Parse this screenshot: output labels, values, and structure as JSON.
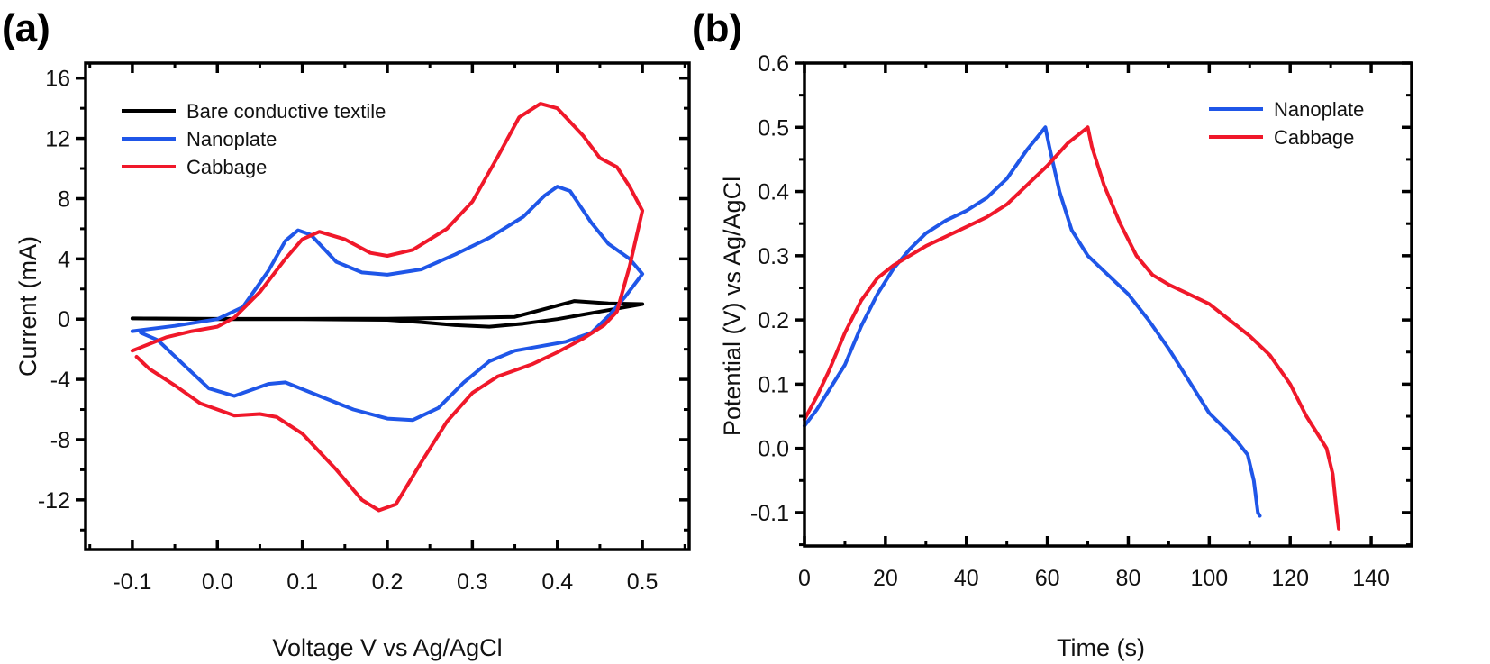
{
  "figure": {
    "panels": [
      "(a)",
      "(b)"
    ]
  },
  "chart_data": [
    {
      "panel_label": "(a)",
      "type": "line",
      "title": "",
      "xlabel": "Voltage V vs Ag/AgCl",
      "ylabel": "Current (mA)",
      "xlim": [
        -0.155,
        0.555
      ],
      "ylim": [
        -15.3,
        17.0
      ],
      "xticks": [
        -0.1,
        0.0,
        0.1,
        0.2,
        0.3,
        0.4,
        0.5
      ],
      "xtick_labels": [
        "-0.1",
        "0.0",
        "0.1",
        "0.2",
        "0.3",
        "0.4",
        "0.5"
      ],
      "yticks": [
        -12,
        -8,
        -4,
        0,
        4,
        8,
        12,
        16
      ],
      "ytick_labels": [
        "-12",
        "-8",
        "-4",
        "0",
        "4",
        "8",
        "12",
        "16"
      ],
      "grid": false,
      "legend_position": "top-left",
      "series": [
        {
          "name": "Bare conductive textile",
          "color": "#000000",
          "points": [
            [
              -0.1,
              0.05
            ],
            [
              0.0,
              0.02
            ],
            [
              0.1,
              0.02
            ],
            [
              0.2,
              0.03
            ],
            [
              0.3,
              0.1
            ],
            [
              0.35,
              0.15
            ],
            [
              0.38,
              0.6
            ],
            [
              0.42,
              1.2
            ],
            [
              0.46,
              1.05
            ],
            [
              0.5,
              1.0
            ],
            [
              0.46,
              0.6
            ],
            [
              0.4,
              0.0
            ],
            [
              0.36,
              -0.3
            ],
            [
              0.32,
              -0.5
            ],
            [
              0.28,
              -0.4
            ],
            [
              0.24,
              -0.2
            ],
            [
              0.2,
              -0.05
            ],
            [
              0.1,
              0.0
            ],
            [
              0.0,
              0.0
            ],
            [
              -0.1,
              0.05
            ]
          ]
        },
        {
          "name": "Nanoplate",
          "color": "#1f56e8",
          "points": [
            [
              -0.1,
              -0.8
            ],
            [
              -0.05,
              -0.45
            ],
            [
              0.0,
              0.0
            ],
            [
              0.03,
              0.8
            ],
            [
              0.06,
              3.2
            ],
            [
              0.08,
              5.2
            ],
            [
              0.095,
              5.9
            ],
            [
              0.11,
              5.6
            ],
            [
              0.14,
              3.8
            ],
            [
              0.17,
              3.1
            ],
            [
              0.2,
              2.95
            ],
            [
              0.24,
              3.3
            ],
            [
              0.28,
              4.3
            ],
            [
              0.32,
              5.4
            ],
            [
              0.36,
              6.8
            ],
            [
              0.385,
              8.2
            ],
            [
              0.4,
              8.8
            ],
            [
              0.415,
              8.5
            ],
            [
              0.44,
              6.4
            ],
            [
              0.46,
              5.0
            ],
            [
              0.485,
              4.0
            ],
            [
              0.5,
              3.0
            ],
            [
              0.48,
              1.5
            ],
            [
              0.46,
              0.2
            ],
            [
              0.44,
              -0.9
            ],
            [
              0.41,
              -1.5
            ],
            [
              0.38,
              -1.8
            ],
            [
              0.35,
              -2.1
            ],
            [
              0.32,
              -2.8
            ],
            [
              0.29,
              -4.2
            ],
            [
              0.26,
              -5.9
            ],
            [
              0.23,
              -6.7
            ],
            [
              0.2,
              -6.6
            ],
            [
              0.16,
              -6.0
            ],
            [
              0.12,
              -5.1
            ],
            [
              0.08,
              -4.2
            ],
            [
              0.06,
              -4.3
            ],
            [
              0.02,
              -5.1
            ],
            [
              -0.01,
              -4.6
            ],
            [
              -0.04,
              -3.0
            ],
            [
              -0.07,
              -1.4
            ],
            [
              -0.09,
              -0.9
            ]
          ]
        },
        {
          "name": "Cabbage",
          "color": "#f0182a",
          "points": [
            [
              -0.1,
              -2.1
            ],
            [
              -0.06,
              -1.2
            ],
            [
              -0.03,
              -0.8
            ],
            [
              0.0,
              -0.5
            ],
            [
              0.02,
              0.1
            ],
            [
              0.05,
              1.8
            ],
            [
              0.08,
              4.0
            ],
            [
              0.1,
              5.3
            ],
            [
              0.12,
              5.8
            ],
            [
              0.15,
              5.3
            ],
            [
              0.18,
              4.4
            ],
            [
              0.2,
              4.2
            ],
            [
              0.23,
              4.6
            ],
            [
              0.27,
              6.0
            ],
            [
              0.3,
              7.8
            ],
            [
              0.33,
              10.8
            ],
            [
              0.355,
              13.4
            ],
            [
              0.38,
              14.3
            ],
            [
              0.4,
              14.0
            ],
            [
              0.43,
              12.2
            ],
            [
              0.45,
              10.7
            ],
            [
              0.47,
              10.1
            ],
            [
              0.485,
              8.8
            ],
            [
              0.5,
              7.2
            ],
            [
              0.485,
              3.5
            ],
            [
              0.47,
              0.5
            ],
            [
              0.455,
              -0.4
            ],
            [
              0.43,
              -1.3
            ],
            [
              0.4,
              -2.2
            ],
            [
              0.37,
              -3.0
            ],
            [
              0.33,
              -3.8
            ],
            [
              0.3,
              -4.9
            ],
            [
              0.27,
              -6.8
            ],
            [
              0.24,
              -9.5
            ],
            [
              0.21,
              -12.3
            ],
            [
              0.19,
              -12.7
            ],
            [
              0.17,
              -12.0
            ],
            [
              0.14,
              -10.0
            ],
            [
              0.1,
              -7.6
            ],
            [
              0.07,
              -6.5
            ],
            [
              0.05,
              -6.3
            ],
            [
              0.02,
              -6.4
            ],
            [
              -0.02,
              -5.6
            ],
            [
              -0.05,
              -4.4
            ],
            [
              -0.08,
              -3.3
            ],
            [
              -0.095,
              -2.5
            ]
          ]
        }
      ]
    },
    {
      "panel_label": "(b)",
      "type": "line",
      "title": "",
      "xlabel": "Time (s)",
      "ylabel": "Potential (V) vs Ag/AgCl",
      "xlim": [
        0,
        150
      ],
      "ylim": [
        -0.152,
        0.6
      ],
      "xticks": [
        0,
        20,
        40,
        60,
        80,
        100,
        120,
        140
      ],
      "xtick_labels": [
        "0",
        "20",
        "40",
        "60",
        "80",
        "100",
        "120",
        "140"
      ],
      "yticks": [
        -0.1,
        0.0,
        0.1,
        0.2,
        0.3,
        0.4,
        0.5,
        0.6
      ],
      "ytick_labels": [
        "-0.1",
        "0.0",
        "0.1",
        "0.2",
        "0.3",
        "0.4",
        "0.5",
        "0.6"
      ],
      "grid": false,
      "legend_position": "top-right",
      "series": [
        {
          "name": "Nanoplate",
          "color": "#1f56e8",
          "points": [
            [
              0,
              0.035
            ],
            [
              3,
              0.06
            ],
            [
              6,
              0.09
            ],
            [
              10,
              0.13
            ],
            [
              14,
              0.19
            ],
            [
              18,
              0.24
            ],
            [
              22,
              0.28
            ],
            [
              26,
              0.31
            ],
            [
              30,
              0.335
            ],
            [
              35,
              0.355
            ],
            [
              40,
              0.37
            ],
            [
              45,
              0.39
            ],
            [
              50,
              0.42
            ],
            [
              55,
              0.465
            ],
            [
              59.5,
              0.5
            ],
            [
              60.5,
              0.47
            ],
            [
              63,
              0.4
            ],
            [
              66,
              0.34
            ],
            [
              70,
              0.3
            ],
            [
              75,
              0.27
            ],
            [
              80,
              0.24
            ],
            [
              85,
              0.2
            ],
            [
              90,
              0.155
            ],
            [
              95,
              0.105
            ],
            [
              100,
              0.055
            ],
            [
              104,
              0.03
            ],
            [
              107,
              0.01
            ],
            [
              109.5,
              -0.01
            ],
            [
              111,
              -0.05
            ],
            [
              112,
              -0.1
            ],
            [
              112.5,
              -0.105
            ]
          ]
        },
        {
          "name": "Cabbage",
          "color": "#f0182a",
          "points": [
            [
              0,
              0.045
            ],
            [
              3,
              0.08
            ],
            [
              6,
              0.12
            ],
            [
              10,
              0.18
            ],
            [
              14,
              0.23
            ],
            [
              18,
              0.265
            ],
            [
              22,
              0.285
            ],
            [
              26,
              0.3
            ],
            [
              30,
              0.315
            ],
            [
              35,
              0.33
            ],
            [
              40,
              0.345
            ],
            [
              45,
              0.36
            ],
            [
              50,
              0.38
            ],
            [
              55,
              0.41
            ],
            [
              60,
              0.44
            ],
            [
              65,
              0.475
            ],
            [
              70,
              0.5
            ],
            [
              71,
              0.47
            ],
            [
              74,
              0.41
            ],
            [
              78,
              0.35
            ],
            [
              82,
              0.3
            ],
            [
              86,
              0.27
            ],
            [
              90,
              0.255
            ],
            [
              95,
              0.24
            ],
            [
              100,
              0.225
            ],
            [
              105,
              0.2
            ],
            [
              110,
              0.175
            ],
            [
              115,
              0.145
            ],
            [
              120,
              0.1
            ],
            [
              124,
              0.05
            ],
            [
              127,
              0.02
            ],
            [
              129,
              0.0
            ],
            [
              130.5,
              -0.04
            ],
            [
              131.5,
              -0.1
            ],
            [
              132,
              -0.125
            ]
          ]
        }
      ]
    }
  ]
}
